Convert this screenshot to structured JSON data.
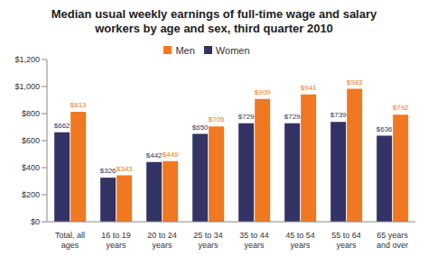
{
  "chart_data": {
    "type": "bar",
    "title": "Median usual weekly earnings of full-time wage and salary workers by age and sex, third quarter 2010",
    "categories": [
      "Total, all ages",
      "16 to 19 years",
      "20 to 24 years",
      "25 to 34 years",
      "35 to 44 years",
      "45 to 54 years",
      "55 to 64 years",
      "65 years and over"
    ],
    "series": [
      {
        "name": "Women",
        "color": "#333366",
        "values": [
          662,
          326,
          442,
          650,
          729,
          729,
          739,
          636
        ],
        "value_labels": [
          "$662",
          "$326",
          "$442",
          "$650",
          "$729",
          "$729",
          "$739",
          "$636"
        ]
      },
      {
        "name": "Men",
        "color": "#f07820",
        "values": [
          813,
          343,
          449,
          705,
          909,
          941,
          983,
          792
        ],
        "value_labels": [
          "$813",
          "$343",
          "$449",
          "$705",
          "$909",
          "$941",
          "$983",
          "$792"
        ]
      }
    ],
    "ylim": [
      0,
      1200
    ],
    "yticks": [
      {
        "value": 0,
        "label": "$0"
      },
      {
        "value": 200,
        "label": "$200"
      },
      {
        "value": 400,
        "label": "$400"
      },
      {
        "value": 600,
        "label": "$600"
      },
      {
        "value": 800,
        "label": "$800"
      },
      {
        "value": 1000,
        "label": "$1,000"
      },
      {
        "value": 1200,
        "label": "$1,200"
      }
    ],
    "grid": false,
    "legend": "top",
    "data_labels": true
  }
}
